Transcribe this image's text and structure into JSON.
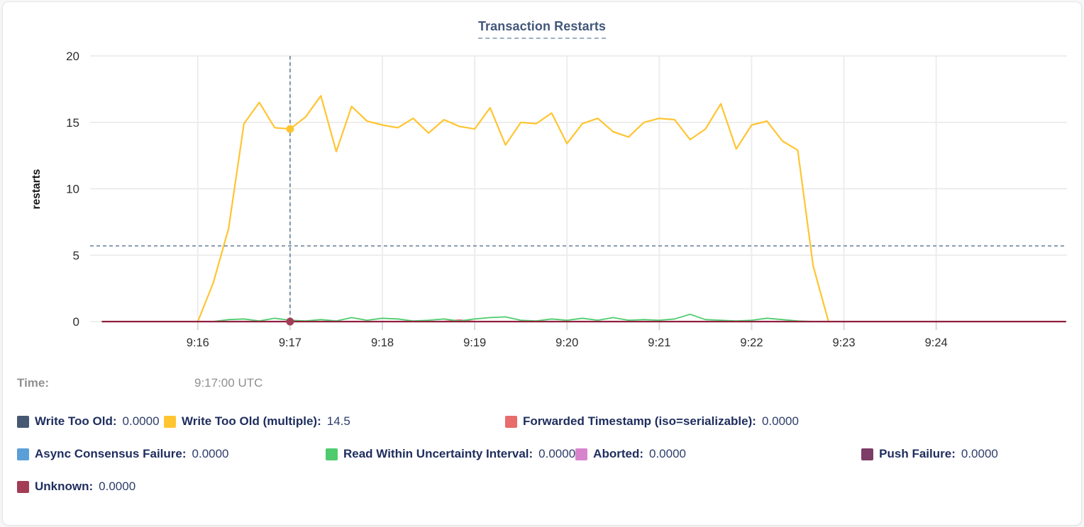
{
  "chart_data": {
    "type": "line",
    "title": "Transaction Restarts",
    "ylabel": "restarts",
    "ylim": [
      0,
      20
    ],
    "y_ticks": [
      0,
      5,
      10,
      15,
      20
    ],
    "x_range": [
      "9:14:50",
      "9:25:25"
    ],
    "x_ticks": [
      {
        "t": "9:16:00",
        "label": "9:16"
      },
      {
        "t": "9:17:00",
        "label": "9:17"
      },
      {
        "t": "9:18:00",
        "label": "9:18"
      },
      {
        "t": "9:19:00",
        "label": "9:19"
      },
      {
        "t": "9:20:00",
        "label": "9:20"
      },
      {
        "t": "9:21:00",
        "label": "9:21"
      },
      {
        "t": "9:22:00",
        "label": "9:22"
      },
      {
        "t": "9:23:00",
        "label": "9:23"
      },
      {
        "t": "9:24:00",
        "label": "9:24"
      }
    ],
    "grid": true,
    "crosshair": {
      "x": "9:17:00",
      "y": 5.7
    },
    "hover_points": [
      {
        "series": "Write Too Old (multiple)",
        "x": "9:17:00",
        "value": 14.5
      },
      {
        "series": "Unknown",
        "x": "9:17:00",
        "value": 0
      }
    ],
    "series": [
      {
        "name": "Write Too Old",
        "color": "#475872",
        "width": 2,
        "current_value": "0.0000",
        "points": [
          [
            "9:14:58",
            0
          ],
          [
            "9:25:24",
            0
          ]
        ]
      },
      {
        "name": "Write Too Old (multiple)",
        "color": "#ffc531",
        "width": 2.2,
        "current_value": "14.5",
        "points": [
          [
            "9:16:00",
            0
          ],
          [
            "9:16:10",
            2.9
          ],
          [
            "9:16:20",
            7.0
          ],
          [
            "9:16:30",
            14.9
          ],
          [
            "9:16:40",
            16.5
          ],
          [
            "9:16:50",
            14.6
          ],
          [
            "9:17:00",
            14.5
          ],
          [
            "9:17:10",
            15.4
          ],
          [
            "9:17:20",
            17.0
          ],
          [
            "9:17:30",
            12.8
          ],
          [
            "9:17:40",
            16.2
          ],
          [
            "9:17:50",
            15.1
          ],
          [
            "9:18:00",
            14.8
          ],
          [
            "9:18:10",
            14.6
          ],
          [
            "9:18:20",
            15.3
          ],
          [
            "9:18:30",
            14.2
          ],
          [
            "9:18:40",
            15.2
          ],
          [
            "9:18:50",
            14.7
          ],
          [
            "9:19:00",
            14.5
          ],
          [
            "9:19:10",
            16.1
          ],
          [
            "9:19:20",
            13.3
          ],
          [
            "9:19:30",
            15.0
          ],
          [
            "9:19:40",
            14.9
          ],
          [
            "9:19:50",
            15.7
          ],
          [
            "9:20:00",
            13.4
          ],
          [
            "9:20:10",
            14.9
          ],
          [
            "9:20:20",
            15.3
          ],
          [
            "9:20:30",
            14.3
          ],
          [
            "9:20:40",
            13.9
          ],
          [
            "9:20:50",
            15.0
          ],
          [
            "9:21:00",
            15.3
          ],
          [
            "9:21:10",
            15.2
          ],
          [
            "9:21:20",
            13.7
          ],
          [
            "9:21:30",
            14.5
          ],
          [
            "9:21:40",
            16.4
          ],
          [
            "9:21:50",
            13.0
          ],
          [
            "9:22:00",
            14.8
          ],
          [
            "9:22:10",
            15.1
          ],
          [
            "9:22:20",
            13.6
          ],
          [
            "9:22:30",
            12.9
          ],
          [
            "9:22:40",
            4.2
          ],
          [
            "9:22:50",
            0
          ]
        ]
      },
      {
        "name": "Forwarded Timestamp (iso=serializable)",
        "color": "#e96c6c",
        "width": 2,
        "current_value": "0.0000",
        "points": [
          [
            "9:14:58",
            0
          ],
          [
            "9:18:40",
            0
          ],
          [
            "9:18:50",
            0.12
          ],
          [
            "9:19:00",
            0
          ],
          [
            "9:25:24",
            0
          ]
        ]
      },
      {
        "name": "Async Consensus Failure",
        "color": "#5b9fd8",
        "width": 2,
        "current_value": "0.0000",
        "points": [
          [
            "9:14:58",
            0
          ],
          [
            "9:25:24",
            0
          ]
        ]
      },
      {
        "name": "Read Within Uncertainty Interval",
        "color": "#4ecb6d",
        "width": 1.8,
        "current_value": "0.0000",
        "points": [
          [
            "9:14:58",
            0
          ],
          [
            "9:16:10",
            0
          ],
          [
            "9:16:20",
            0.15
          ],
          [
            "9:16:30",
            0.2
          ],
          [
            "9:16:40",
            0.05
          ],
          [
            "9:16:50",
            0.25
          ],
          [
            "9:17:00",
            0.1
          ],
          [
            "9:17:10",
            0.05
          ],
          [
            "9:17:20",
            0.15
          ],
          [
            "9:17:30",
            0.05
          ],
          [
            "9:17:40",
            0.3
          ],
          [
            "9:17:50",
            0.1
          ],
          [
            "9:18:00",
            0.25
          ],
          [
            "9:18:10",
            0.2
          ],
          [
            "9:18:20",
            0.05
          ],
          [
            "9:18:30",
            0.1
          ],
          [
            "9:18:40",
            0.2
          ],
          [
            "9:18:50",
            0.05
          ],
          [
            "9:19:00",
            0.2
          ],
          [
            "9:19:10",
            0.3
          ],
          [
            "9:19:20",
            0.35
          ],
          [
            "9:19:30",
            0.1
          ],
          [
            "9:19:40",
            0.05
          ],
          [
            "9:19:50",
            0.2
          ],
          [
            "9:20:00",
            0.1
          ],
          [
            "9:20:10",
            0.25
          ],
          [
            "9:20:20",
            0.1
          ],
          [
            "9:20:30",
            0.3
          ],
          [
            "9:20:40",
            0.1
          ],
          [
            "9:20:50",
            0.15
          ],
          [
            "9:21:00",
            0.1
          ],
          [
            "9:21:10",
            0.2
          ],
          [
            "9:21:20",
            0.55
          ],
          [
            "9:21:30",
            0.15
          ],
          [
            "9:21:40",
            0.1
          ],
          [
            "9:21:50",
            0.05
          ],
          [
            "9:22:00",
            0.1
          ],
          [
            "9:22:10",
            0.25
          ],
          [
            "9:22:20",
            0.15
          ],
          [
            "9:22:30",
            0.05
          ],
          [
            "9:22:40",
            0
          ],
          [
            "9:25:24",
            0
          ]
        ]
      },
      {
        "name": "Aborted",
        "color": "#d784cd",
        "width": 2,
        "current_value": "0.0000",
        "points": [
          [
            "9:14:58",
            0
          ],
          [
            "9:25:24",
            0
          ]
        ]
      },
      {
        "name": "Push Failure",
        "color": "#7c3d68",
        "width": 2,
        "current_value": "0.0000",
        "points": [
          [
            "9:14:58",
            0
          ],
          [
            "9:25:24",
            0
          ]
        ]
      },
      {
        "name": "Unknown",
        "color": "#8f2040",
        "swatch_color": "#a33d56",
        "width": 2.2,
        "current_value": "0.0000",
        "points": [
          [
            "9:14:58",
            0
          ],
          [
            "9:25:24",
            0
          ]
        ]
      }
    ]
  },
  "legend": {
    "time_label": "Time:",
    "time_value": "9:17:00 UTC",
    "rows": [
      [
        0,
        1,
        2
      ],
      [
        3,
        4,
        5,
        6
      ],
      [
        7
      ]
    ]
  }
}
